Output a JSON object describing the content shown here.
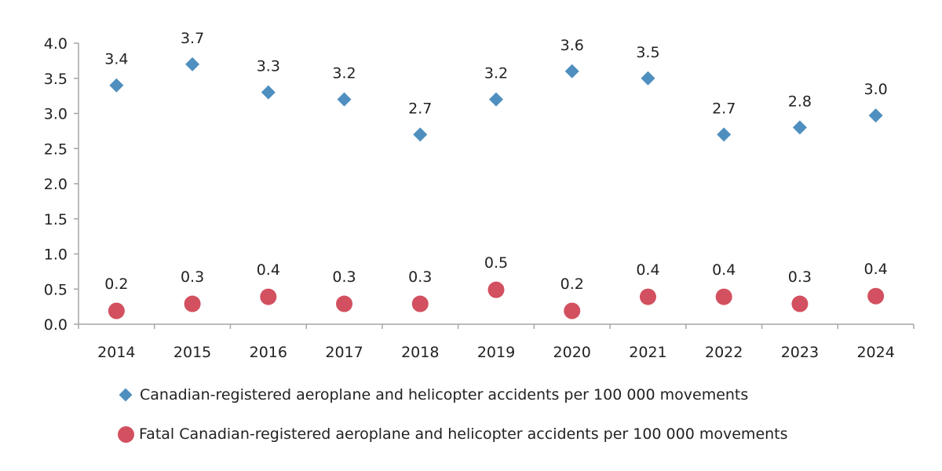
{
  "chart_data": {
    "type": "scatter",
    "categories": [
      "2014",
      "2015",
      "2016",
      "2017",
      "2018",
      "2019",
      "2020",
      "2021",
      "2022",
      "2023",
      "2024"
    ],
    "ylim": [
      0.0,
      4.0
    ],
    "yticks": [
      "0.0",
      "0.5",
      "1.0",
      "1.5",
      "2.0",
      "2.5",
      "3.0",
      "3.5",
      "4.0"
    ],
    "series": [
      {
        "name": "Canadian-registered aeroplane and helicopter accidents per 100 000 movements",
        "marker": "diamond",
        "color": "#4e8fbf",
        "values": [
          3.4,
          3.7,
          3.3,
          3.2,
          2.7,
          3.2,
          3.6,
          3.5,
          2.7,
          2.8,
          2.97
        ],
        "labels": [
          "3.4",
          "3.7",
          "3.3",
          "3.2",
          "2.7",
          "3.2",
          "3.6",
          "3.5",
          "2.7",
          "2.8",
          "3.0"
        ]
      },
      {
        "name": "Fatal Canadian-registered aeroplane and helicopter accidents per 100 000 movements",
        "marker": "circle",
        "color": "#d2505f",
        "values": [
          0.19,
          0.29,
          0.39,
          0.29,
          0.29,
          0.49,
          0.19,
          0.39,
          0.39,
          0.29,
          0.4
        ],
        "labels": [
          "0.2",
          "0.3",
          "0.4",
          "0.3",
          "0.3",
          "0.5",
          "0.2",
          "0.4",
          "0.4",
          "0.3",
          "0.4"
        ]
      }
    ],
    "title": "",
    "xlabel": "",
    "ylabel": "",
    "legend_position": "bottom",
    "grid": false
  }
}
